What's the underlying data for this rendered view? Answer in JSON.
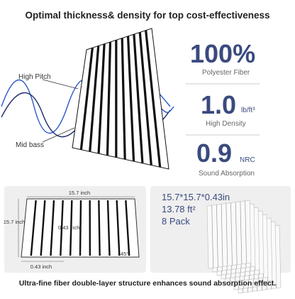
{
  "header": {
    "title": "Optimal thickness& density for top cost-effectiveness"
  },
  "waves": {
    "high": "High Pitch",
    "mid": "Mid bass"
  },
  "specs": [
    {
      "value": "100%",
      "label": "Polyester Fiber"
    },
    {
      "value": "1.0",
      "unit": "lb/ft³",
      "label": "High Density"
    },
    {
      "value": "0.9",
      "unit": "NRC",
      "label": "Sound Absorption"
    }
  ],
  "dimensions": {
    "width": "15.7 inch",
    "height": "15.7 inch",
    "slat_depth": "0.43 inch",
    "thickness": "0.43 inch",
    "angle": "45°"
  },
  "package": {
    "size": "15.7*15.7*0.43in",
    "area": "13.78 ft²",
    "count": "8 Pack"
  },
  "footer": "Ultra-fine fiber double-layer structure enhances sound absorption effect."
}
